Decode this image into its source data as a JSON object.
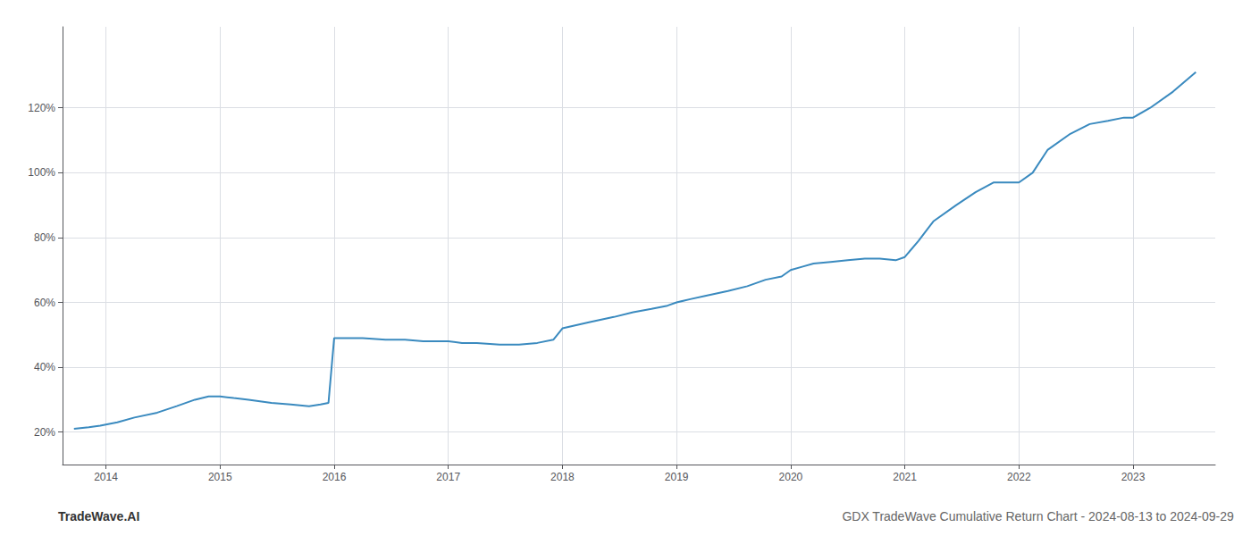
{
  "chart_data": {
    "type": "line",
    "title": "GDX TradeWave Cumulative Return Chart - 2024-08-13 to 2024-09-29",
    "annotations": [
      "TradeWave.AI"
    ],
    "color": "#3a8abf",
    "grid": true,
    "x": [
      2013.72,
      2013.85,
      2013.95,
      2014.1,
      2014.25,
      2014.45,
      2014.62,
      2014.78,
      2014.9,
      2015.0,
      2015.12,
      2015.25,
      2015.45,
      2015.62,
      2015.78,
      2015.88,
      2015.95,
      2016.0,
      2016.05,
      2016.12,
      2016.25,
      2016.45,
      2016.62,
      2016.78,
      2016.9,
      2017.0,
      2017.12,
      2017.25,
      2017.45,
      2017.62,
      2017.78,
      2017.92,
      2018.0,
      2018.12,
      2018.25,
      2018.45,
      2018.62,
      2018.78,
      2018.92,
      2019.0,
      2019.12,
      2019.25,
      2019.45,
      2019.62,
      2019.78,
      2019.92,
      2020.0,
      2020.1,
      2020.2,
      2020.35,
      2020.5,
      2020.65,
      2020.78,
      2020.92,
      2021.0,
      2021.12,
      2021.25,
      2021.45,
      2021.62,
      2021.78,
      2021.92,
      2022.0,
      2022.12,
      2022.25,
      2022.45,
      2022.62,
      2022.78,
      2022.92,
      2023.0,
      2023.15,
      2023.35,
      2023.55
    ],
    "values": [
      21,
      21.5,
      22,
      23,
      24.5,
      26,
      28,
      30,
      31,
      31,
      30.5,
      30,
      29,
      28.5,
      28,
      28.5,
      29,
      49,
      49,
      49,
      49,
      48.5,
      48.5,
      48,
      48,
      48,
      47.5,
      47.5,
      47,
      47,
      47.5,
      48.5,
      52,
      53,
      54,
      55.5,
      57,
      58,
      59,
      60,
      61,
      62,
      63.5,
      65,
      67,
      68,
      70,
      71,
      72,
      72.5,
      73,
      73.5,
      73.5,
      73,
      74,
      79,
      85,
      90,
      94,
      97,
      97,
      97,
      100,
      107,
      112,
      115,
      116,
      117,
      117,
      120,
      125,
      131
    ],
    "xlim": [
      2013.62,
      2023.72
    ],
    "xticks": [
      2014,
      2015,
      2016,
      2017,
      2018,
      2019,
      2020,
      2021,
      2022,
      2023
    ],
    "ylim": [
      10,
      145
    ],
    "yticks": [
      {
        "value": 20,
        "label": "20%"
      },
      {
        "value": 40,
        "label": "40%"
      },
      {
        "value": 60,
        "label": "60%"
      },
      {
        "value": 80,
        "label": "80%"
      },
      {
        "value": 100,
        "label": "100%"
      },
      {
        "value": 120,
        "label": "120%"
      }
    ]
  }
}
